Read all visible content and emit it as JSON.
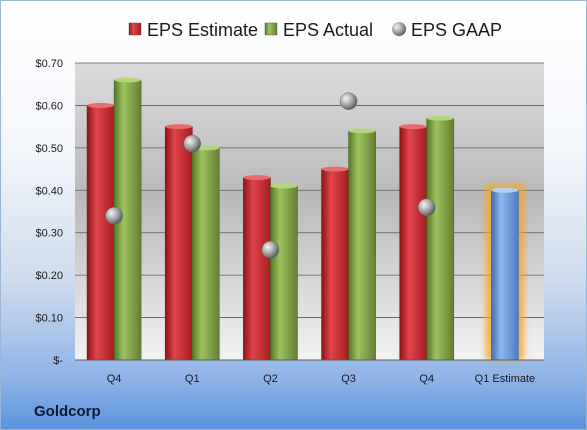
{
  "company": "Goldcorp",
  "chart_data": {
    "type": "bar",
    "categories": [
      "Q4",
      "Q1",
      "Q2",
      "Q3",
      "Q4",
      "Q1 Estimate"
    ],
    "series": [
      {
        "name": "EPS Estimate",
        "type": "bar",
        "color": "#c8262c",
        "values": [
          0.6,
          0.55,
          0.43,
          0.45,
          0.55,
          null
        ]
      },
      {
        "name": "EPS Actual",
        "type": "bar",
        "color": "#7fa343",
        "values": [
          0.66,
          0.5,
          0.41,
          0.54,
          0.57,
          null
        ]
      },
      {
        "name": "EPS GAAP",
        "type": "scatter",
        "color": "#9a9a9a",
        "values": [
          0.34,
          0.51,
          0.26,
          0.61,
          0.36,
          null
        ]
      }
    ],
    "forecast": {
      "category": "Q1 Estimate",
      "value": 0.4,
      "color": "#5b8fd6",
      "glow": "#f5a623"
    },
    "ylim": [
      0,
      0.7
    ],
    "yticks": [
      {
        "value": 0.7,
        "label": "$0.70"
      },
      {
        "value": 0.6,
        "label": "$0.60"
      },
      {
        "value": 0.5,
        "label": "$0.50"
      },
      {
        "value": 0.4,
        "label": "$0.40"
      },
      {
        "value": 0.3,
        "label": "$0.30"
      },
      {
        "value": 0.2,
        "label": "$0.20"
      },
      {
        "value": 0.1,
        "label": "$0.10"
      },
      {
        "value": 0.0,
        "label": "$-"
      }
    ],
    "grid": true,
    "legend_position": "top"
  }
}
